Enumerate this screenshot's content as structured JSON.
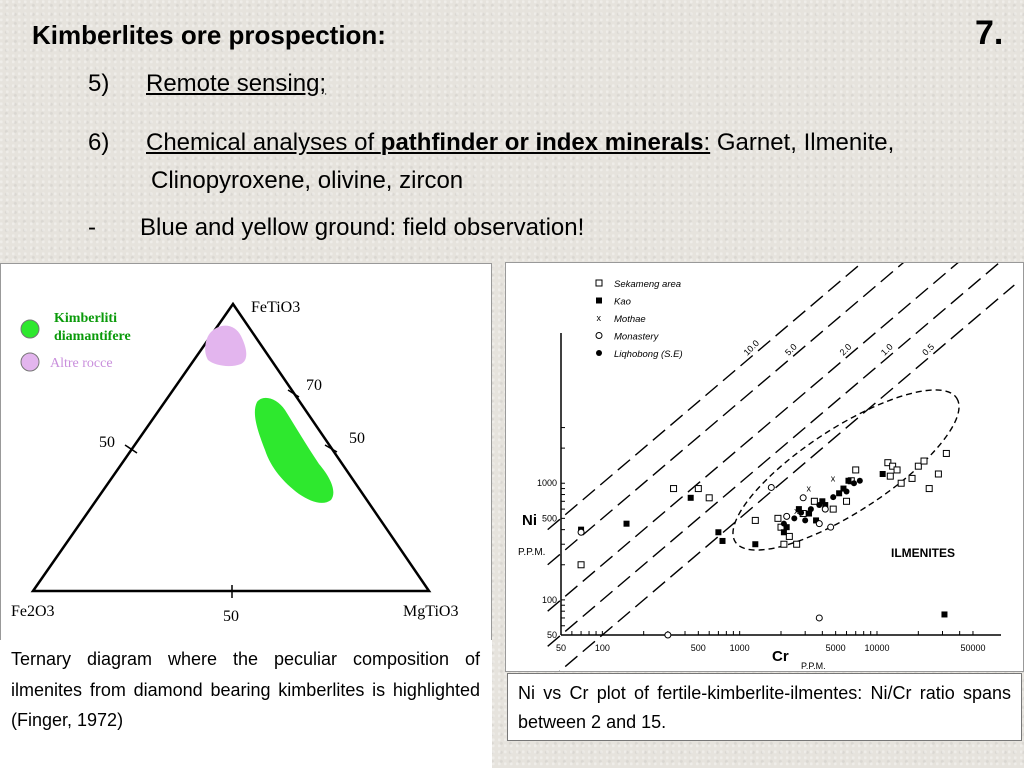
{
  "slide": {
    "title": "Kimberlites ore prospection:",
    "number": "7.",
    "items": [
      {
        "marker": "5)",
        "text": "Remote sensing;"
      },
      {
        "marker": "6)",
        "pre": "Chemical analyses of ",
        "bold": "pathfinder or index minerals",
        "colon": ":",
        "rest": " Garnet, Ilmenite,",
        "line2": "Clinopyroxene, olivine, zircon"
      },
      {
        "marker": "-",
        "text": "Blue and yellow ground: field observation!"
      }
    ]
  },
  "ternary": {
    "vertex_top": "FeTiO3",
    "vertex_left": "Fe2O3",
    "vertex_right": "MgTiO3",
    "tick_left": "50",
    "tick_right_upper": "70",
    "tick_right_lower": "50",
    "tick_bottom": "50",
    "legend": [
      {
        "label_1": "Kimberliti",
        "label_2": "diamantifere",
        "color": "#2ee82e"
      },
      {
        "label_1": "Altre rocce",
        "color": "#e3b5ee"
      }
    ],
    "caption": "Ternary diagram where the peculiar composition of ilmenites from diamond bearing kimberlites is highlighted (Finger, 1972)"
  },
  "chart_data": {
    "type": "scatter",
    "xscale": "log",
    "yscale": "log",
    "xlabel": "Cr",
    "xunit": "P.P.M.",
    "ylabel": "Ni",
    "yunit": "P.P.M.",
    "xlim": [
      50,
      80000
    ],
    "ylim": [
      50,
      4000
    ],
    "x_ticks": [
      "50",
      "100",
      "500",
      "1000",
      "5000",
      "10000",
      "50000"
    ],
    "y_ticks": [
      "50",
      "100",
      "500",
      "1000"
    ],
    "ratio_lines": [
      "0.5",
      "1.0",
      "2.0",
      "5.0",
      "10.0"
    ],
    "annotation": "ILMENITES",
    "series": [
      {
        "name": "Sekameng area",
        "marker": "open-square",
        "points": [
          [
            70,
            200
          ],
          [
            330,
            900
          ],
          [
            500,
            900
          ],
          [
            600,
            750
          ],
          [
            1300,
            480
          ],
          [
            1900,
            500
          ],
          [
            2000,
            420
          ],
          [
            2300,
            350
          ],
          [
            2100,
            300
          ],
          [
            2600,
            300
          ],
          [
            2900,
            550
          ],
          [
            3500,
            700
          ],
          [
            4800,
            600
          ],
          [
            6000,
            700
          ],
          [
            6500,
            1050
          ],
          [
            7000,
            1300
          ],
          [
            12000,
            1500
          ],
          [
            12500,
            1150
          ],
          [
            13000,
            1400
          ],
          [
            14000,
            1300
          ],
          [
            15000,
            1000
          ],
          [
            18000,
            1100
          ],
          [
            20000,
            1400
          ],
          [
            22000,
            1550
          ],
          [
            24000,
            900
          ],
          [
            28000,
            1200
          ],
          [
            32000,
            1800
          ]
        ]
      },
      {
        "name": "Kao",
        "marker": "filled-square",
        "points": [
          [
            70,
            400
          ],
          [
            150,
            450
          ],
          [
            440,
            750
          ],
          [
            700,
            380
          ],
          [
            750,
            320
          ],
          [
            1300,
            300
          ],
          [
            2100,
            380
          ],
          [
            2200,
            420
          ],
          [
            2700,
            600
          ],
          [
            3200,
            550
          ],
          [
            3600,
            480
          ],
          [
            4000,
            700
          ],
          [
            4200,
            650
          ],
          [
            5300,
            820
          ],
          [
            5700,
            900
          ],
          [
            6200,
            1050
          ],
          [
            11000,
            1200
          ],
          [
            31000,
            75
          ]
        ]
      },
      {
        "name": "Mothae",
        "marker": "x",
        "points": [
          [
            3200,
            900
          ],
          [
            4800,
            1100
          ],
          [
            4200,
            620
          ],
          [
            2600,
            580
          ]
        ]
      },
      {
        "name": "Monastery",
        "marker": "open-circle",
        "points": [
          [
            70,
            380
          ],
          [
            1700,
            920
          ],
          [
            2200,
            520
          ],
          [
            2900,
            750
          ],
          [
            3800,
            450
          ],
          [
            4200,
            600
          ],
          [
            4600,
            420
          ],
          [
            3800,
            70
          ],
          [
            300,
            50
          ]
        ]
      },
      {
        "name": "Liqhobong (S.E)",
        "marker": "filled-circle",
        "points": [
          [
            2500,
            500
          ],
          [
            2800,
            560
          ],
          [
            3300,
            600
          ],
          [
            3800,
            650
          ],
          [
            4800,
            760
          ],
          [
            6000,
            850
          ],
          [
            6800,
            1000
          ],
          [
            7500,
            1050
          ],
          [
            2100,
            450
          ],
          [
            3000,
            480
          ]
        ]
      }
    ],
    "caption": "Ni vs Cr plot of fertile-kimberlite-ilmentes: Ni/Cr ratio spans between 2 and 15."
  }
}
